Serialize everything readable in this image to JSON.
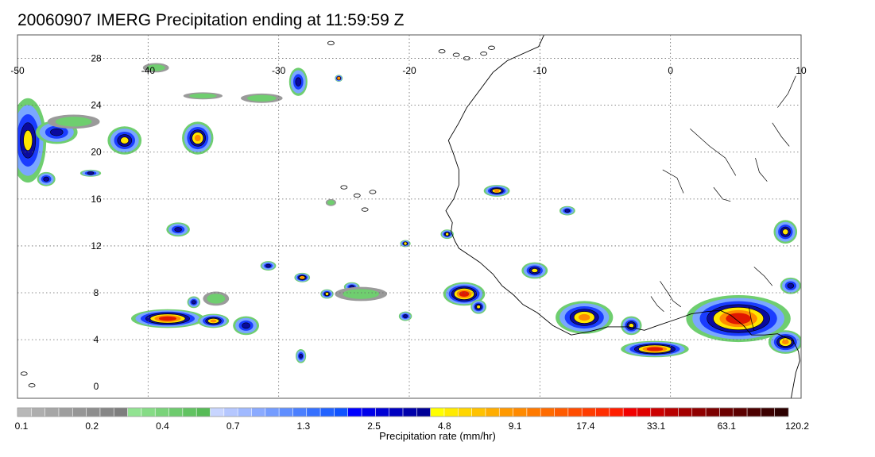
{
  "title": "20060907 IMERG Precipitation ending at 11:59:59 Z",
  "map": {
    "lon_range": [
      -50,
      10
    ],
    "lat_range": [
      -1,
      30
    ],
    "lon_ticks": [
      "-50",
      "-40",
      "-30",
      "-20",
      "-10",
      "0",
      "10"
    ],
    "lat_ticks": [
      "0",
      "4",
      "8",
      "12",
      "16",
      "20",
      "24",
      "28"
    ],
    "grid": true,
    "coastline_color": "#000000",
    "storm_cells": [
      {
        "lon": -49.2,
        "lat": 21.0,
        "rx": 1.4,
        "ry": 3.6,
        "peak": 2
      },
      {
        "lon": -47.0,
        "lat": 21.7,
        "rx": 1.6,
        "ry": 1.0,
        "peak": 1
      },
      {
        "lon": -41.8,
        "lat": 21.0,
        "rx": 1.3,
        "ry": 1.2,
        "peak": 2
      },
      {
        "lon": -36.2,
        "lat": 21.2,
        "rx": 1.2,
        "ry": 1.4,
        "peak": 3
      },
      {
        "lon": -45.7,
        "lat": 22.6,
        "rx": 2.0,
        "ry": 0.6,
        "peak": 0
      },
      {
        "lon": -47.8,
        "lat": 17.7,
        "rx": 0.7,
        "ry": 0.6,
        "peak": 1
      },
      {
        "lon": -44.4,
        "lat": 18.2,
        "rx": 0.8,
        "ry": 0.3,
        "peak": 1
      },
      {
        "lon": -37.7,
        "lat": 13.4,
        "rx": 0.9,
        "ry": 0.6,
        "peak": 1
      },
      {
        "lon": -38.5,
        "lat": 5.8,
        "rx": 2.8,
        "ry": 0.8,
        "peak": 4
      },
      {
        "lon": -35.0,
        "lat": 5.6,
        "rx": 1.2,
        "ry": 0.6,
        "peak": 3
      },
      {
        "lon": -36.5,
        "lat": 7.2,
        "rx": 0.5,
        "ry": 0.5,
        "peak": 1
      },
      {
        "lon": -32.5,
        "lat": 5.2,
        "rx": 1.0,
        "ry": 0.8,
        "peak": 1
      },
      {
        "lon": -28.2,
        "lat": 9.3,
        "rx": 0.6,
        "ry": 0.4,
        "peak": 3
      },
      {
        "lon": -30.8,
        "lat": 10.3,
        "rx": 0.6,
        "ry": 0.4,
        "peak": 1
      },
      {
        "lon": -26.3,
        "lat": 7.9,
        "rx": 0.5,
        "ry": 0.4,
        "peak": 2
      },
      {
        "lon": -20.3,
        "lat": 6.0,
        "rx": 0.5,
        "ry": 0.4,
        "peak": 1
      },
      {
        "lon": -28.3,
        "lat": 2.6,
        "rx": 0.4,
        "ry": 0.6,
        "peak": 1
      },
      {
        "lon": -28.5,
        "lat": 26.0,
        "rx": 0.7,
        "ry": 1.2,
        "peak": 1
      },
      {
        "lon": -25.4,
        "lat": 26.3,
        "rx": 0.3,
        "ry": 0.3,
        "peak": 3
      },
      {
        "lon": -17.1,
        "lat": 13.0,
        "rx": 0.5,
        "ry": 0.4,
        "peak": 2
      },
      {
        "lon": -20.3,
        "lat": 12.2,
        "rx": 0.4,
        "ry": 0.3,
        "peak": 2
      },
      {
        "lon": -15.8,
        "lat": 7.9,
        "rx": 1.6,
        "ry": 1.0,
        "peak": 4
      },
      {
        "lon": -14.7,
        "lat": 6.8,
        "rx": 0.6,
        "ry": 0.6,
        "peak": 2
      },
      {
        "lon": -13.3,
        "lat": 16.7,
        "rx": 1.0,
        "ry": 0.5,
        "peak": 3
      },
      {
        "lon": -10.4,
        "lat": 9.9,
        "rx": 1.0,
        "ry": 0.7,
        "peak": 2
      },
      {
        "lon": -6.6,
        "lat": 5.9,
        "rx": 2.2,
        "ry": 1.4,
        "peak": 3
      },
      {
        "lon": -3.0,
        "lat": 5.2,
        "rx": 0.8,
        "ry": 0.8,
        "peak": 2
      },
      {
        "lon": -1.2,
        "lat": 3.2,
        "rx": 2.6,
        "ry": 0.7,
        "peak": 4
      },
      {
        "lon": 5.2,
        "lat": 5.8,
        "rx": 4.0,
        "ry": 2.0,
        "peak": 4
      },
      {
        "lon": 8.8,
        "lat": 3.8,
        "rx": 1.3,
        "ry": 1.0,
        "peak": 3
      },
      {
        "lon": 8.8,
        "lat": 13.2,
        "rx": 0.9,
        "ry": 1.0,
        "peak": 2
      },
      {
        "lon": 9.2,
        "lat": 8.6,
        "rx": 0.8,
        "ry": 0.7,
        "peak": 1
      },
      {
        "lon": -7.9,
        "lat": 15.0,
        "rx": 0.6,
        "ry": 0.4,
        "peak": 1
      },
      {
        "lon": -24.4,
        "lat": 8.5,
        "rx": 0.6,
        "ry": 0.4,
        "peak": 1
      },
      {
        "lon": -34.8,
        "lat": 7.5,
        "rx": 1.0,
        "ry": 0.6,
        "peak": 0
      },
      {
        "lon": -39.4,
        "lat": 27.2,
        "rx": 1.0,
        "ry": 0.4,
        "peak": 0
      },
      {
        "lon": -35.8,
        "lat": 24.8,
        "rx": 1.5,
        "ry": 0.3,
        "peak": 0
      },
      {
        "lon": -31.3,
        "lat": 24.6,
        "rx": 1.6,
        "ry": 0.4,
        "peak": 0
      },
      {
        "lon": -26.0,
        "lat": 15.7,
        "rx": 0.4,
        "ry": 0.3,
        "peak": 0
      },
      {
        "lon": -23.7,
        "lat": 7.9,
        "rx": 2.0,
        "ry": 0.6,
        "peak": 0
      }
    ]
  },
  "colorbar": {
    "title": "Precipitation rate (mm/hr)",
    "labels": [
      "0.1",
      "0.2",
      "0.4",
      "0.7",
      "1.3",
      "2.5",
      "4.8",
      "9.1",
      "17.4",
      "33.1",
      "63.1",
      "120.2"
    ],
    "colors": [
      "#b8b8b8",
      "#aeaeae",
      "#a6a6a6",
      "#9e9e9e",
      "#969696",
      "#8e8e8e",
      "#868686",
      "#7e7e7e",
      "#92e392",
      "#86dc86",
      "#7ad37a",
      "#6ecb6e",
      "#62c362",
      "#57bb57",
      "#c8d5ff",
      "#b5c7ff",
      "#a0b9ff",
      "#8aaaff",
      "#749cff",
      "#5f8eff",
      "#4a7fff",
      "#3570ff",
      "#2262ff",
      "#0f53ff",
      "#0000ff",
      "#0000ea",
      "#0000d5",
      "#0000c0",
      "#0000ab",
      "#000096",
      "#ffff00",
      "#ffeb00",
      "#ffd600",
      "#ffc200",
      "#ffad00",
      "#ff9900",
      "#ff8a00",
      "#ff7a00",
      "#ff6b00",
      "#ff5b00",
      "#ff4c00",
      "#ff3c00",
      "#ff2d00",
      "#ff1e00",
      "#f20000",
      "#e00000",
      "#cc0000",
      "#b80000",
      "#a40000",
      "#900000",
      "#7c0000",
      "#6c0000",
      "#5c0000",
      "#4c0000",
      "#3c0000",
      "#2c0000"
    ]
  },
  "palette": {
    "gray": "#9a9a9a",
    "green": "#6fce6f",
    "light_blue": "#7aa6ff",
    "blue": "#1a3cff",
    "dark_blue": "#0a0a9e",
    "yellow": "#ffe600",
    "orange": "#ff8c00",
    "red": "#e01800",
    "dark_red": "#8c0000"
  }
}
